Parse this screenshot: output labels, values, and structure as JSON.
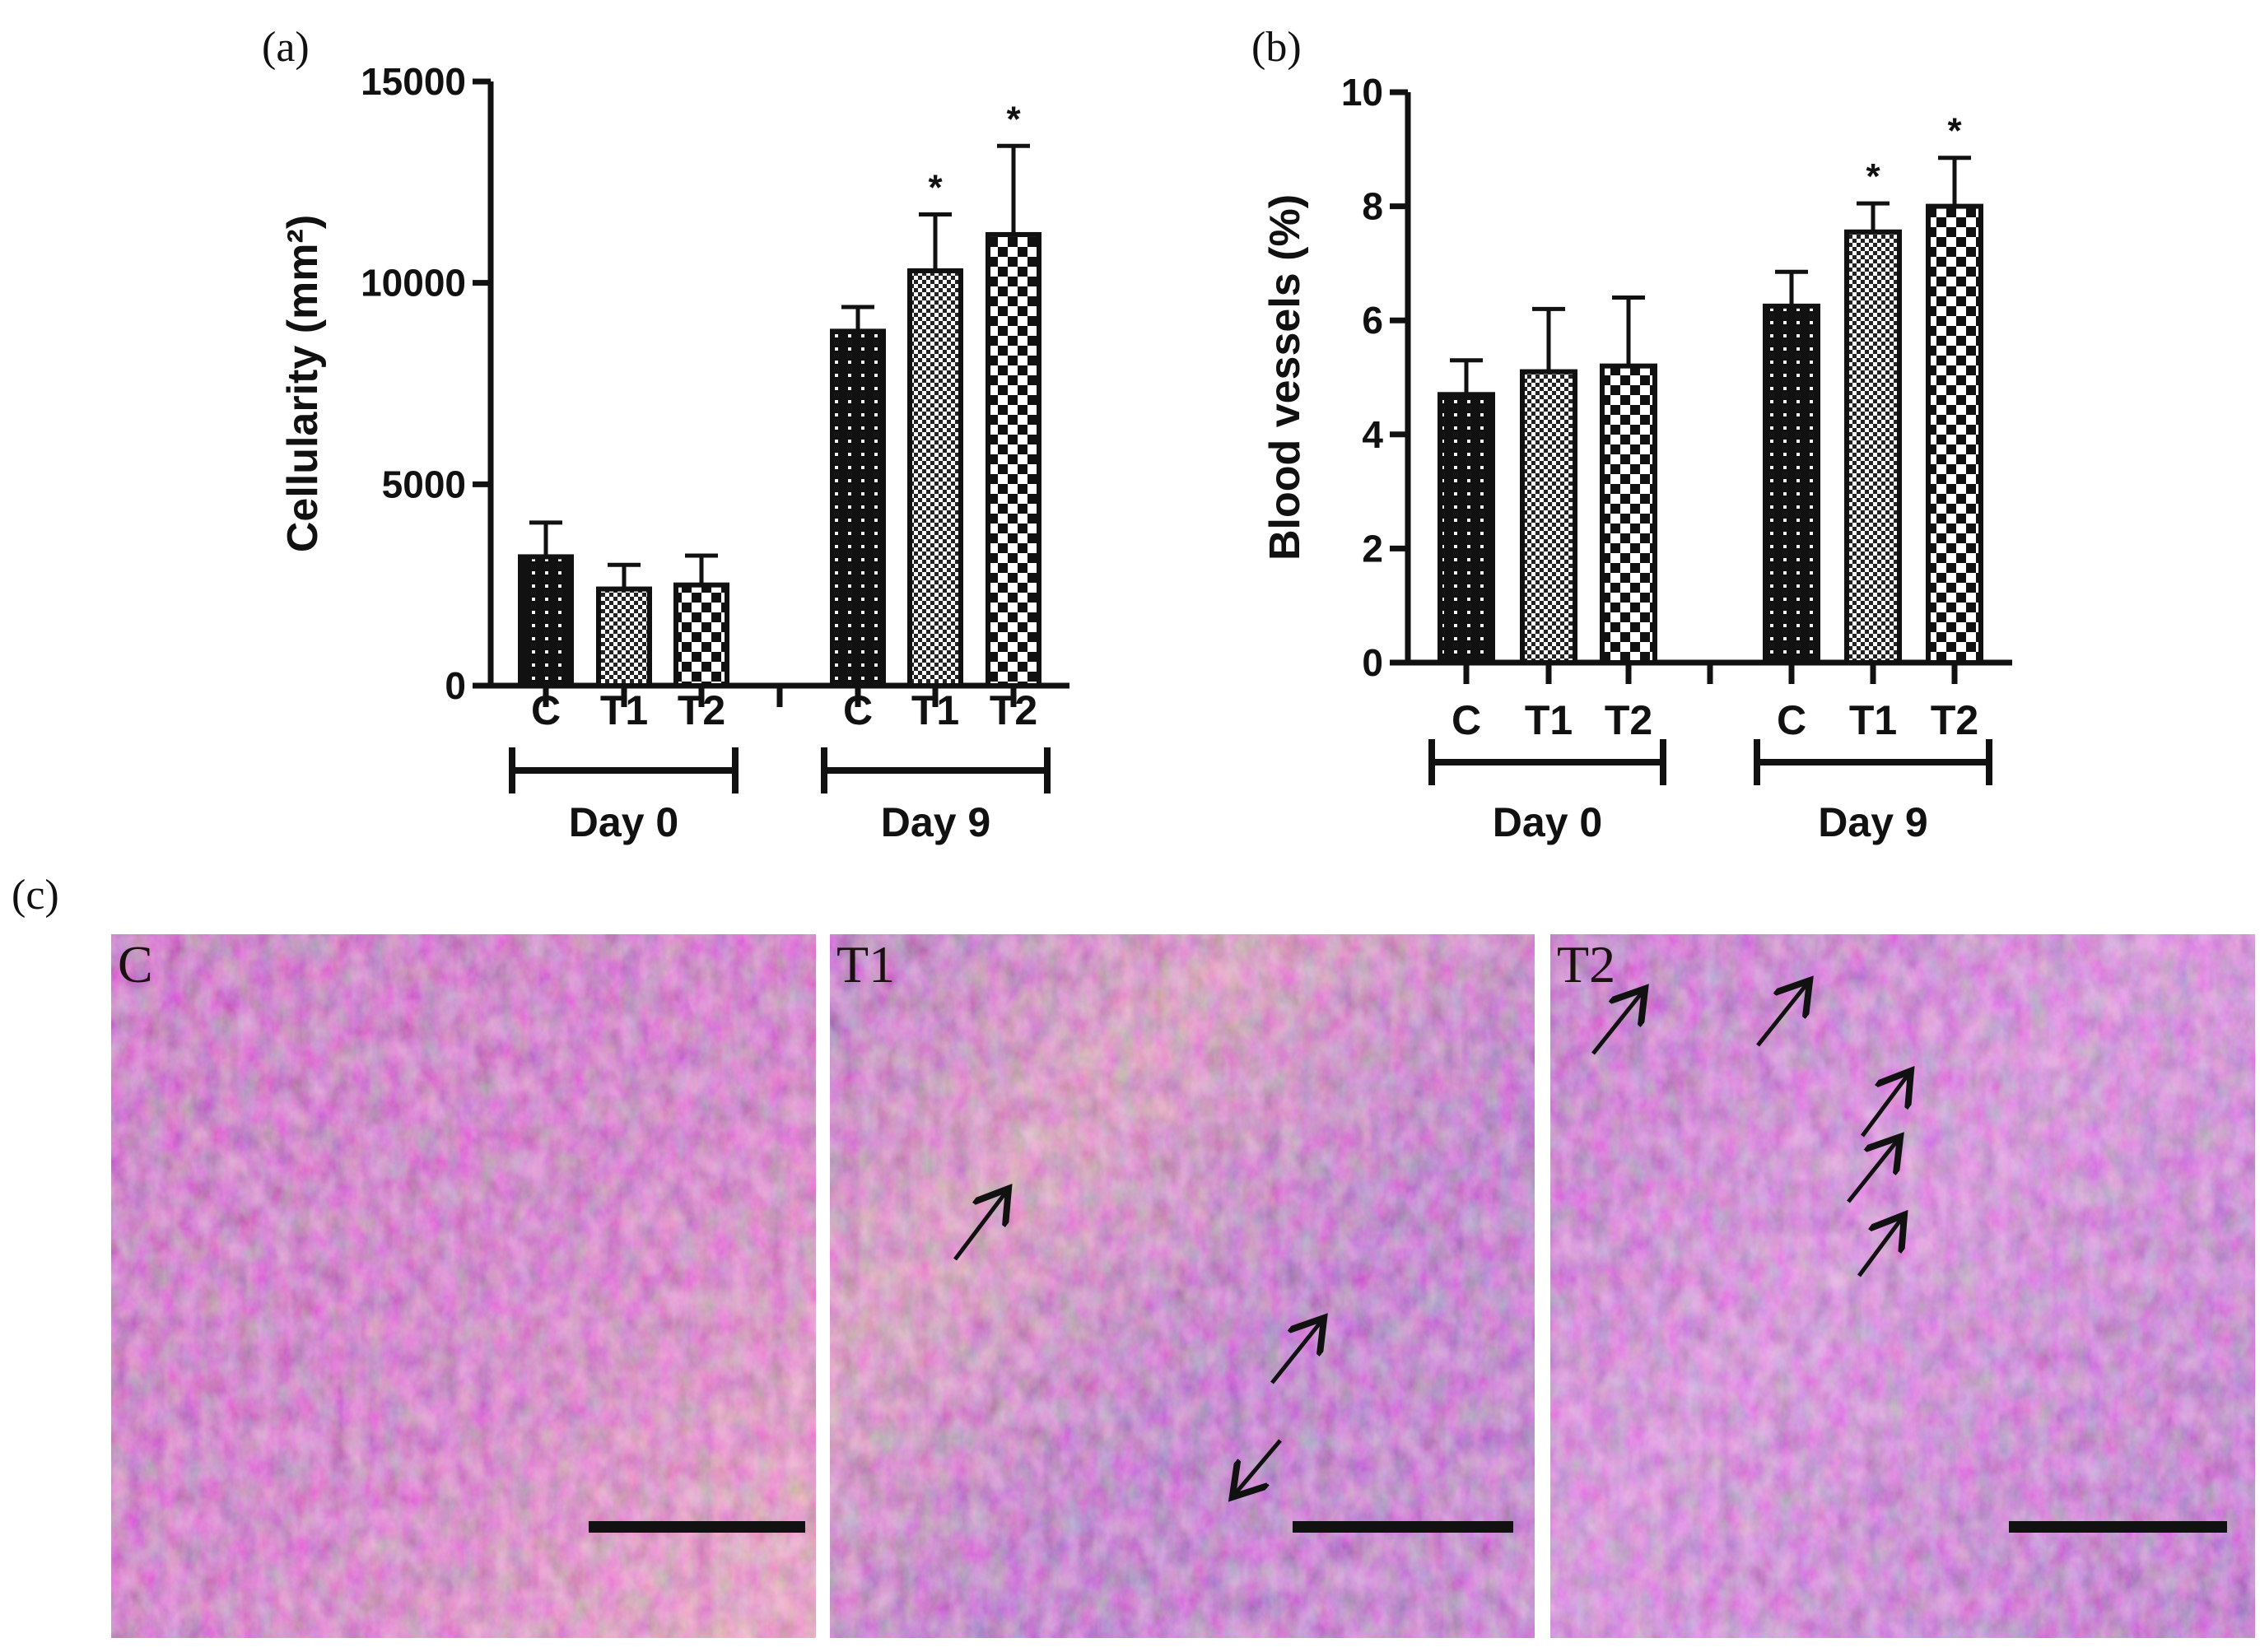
{
  "chart_data": [
    {
      "type": "bar",
      "panel_label": "(a)",
      "ylabel": "Cellularity (mm²)",
      "ylim": [
        0,
        15000
      ],
      "yticks": [
        "0",
        "5000",
        "10000",
        "15000"
      ],
      "groups": [
        {
          "label": "Day 0",
          "categories": [
            "C",
            "T1",
            "T2"
          ],
          "values": [
            3200,
            2400,
            2500
          ],
          "errors": [
            850,
            600,
            730
          ],
          "significance": [
            "",
            "",
            ""
          ]
        },
        {
          "label": "Day 9",
          "categories": [
            "C",
            "T1",
            "T2"
          ],
          "values": [
            8800,
            10300,
            11200
          ],
          "errors": [
            600,
            1400,
            2200
          ],
          "significance": [
            "",
            "*",
            "*"
          ]
        }
      ],
      "patterns": [
        "dense-dots",
        "fine-checker",
        "coarse-checker"
      ]
    },
    {
      "type": "bar",
      "panel_label": "(b)",
      "ylabel": "Blood vessels (%)",
      "ylim": [
        0,
        10
      ],
      "yticks": [
        "0",
        "2",
        "4",
        "6",
        "8",
        "10"
      ],
      "groups": [
        {
          "label": "Day 0",
          "categories": [
            "C",
            "T1",
            "T2"
          ],
          "values": [
            4.7,
            5.1,
            5.2
          ],
          "errors": [
            0.6,
            1.1,
            1.2
          ],
          "significance": [
            "",
            "",
            ""
          ]
        },
        {
          "label": "Day 9",
          "categories": [
            "C",
            "T1",
            "T2"
          ],
          "values": [
            6.25,
            7.55,
            8.0
          ],
          "errors": [
            0.6,
            0.5,
            0.85
          ],
          "significance": [
            "",
            "*",
            "*"
          ]
        }
      ],
      "patterns": [
        "dense-dots",
        "fine-checker",
        "coarse-checker"
      ]
    }
  ],
  "micrographs": {
    "panel_label": "(c)",
    "images": [
      {
        "label": "C",
        "arrows": 0
      },
      {
        "label": "T1",
        "arrows": 3
      },
      {
        "label": "T2",
        "arrows": 5
      }
    ],
    "stain_colors": [
      "#b04f9a",
      "#7d3f98",
      "#e8c07a"
    ]
  }
}
